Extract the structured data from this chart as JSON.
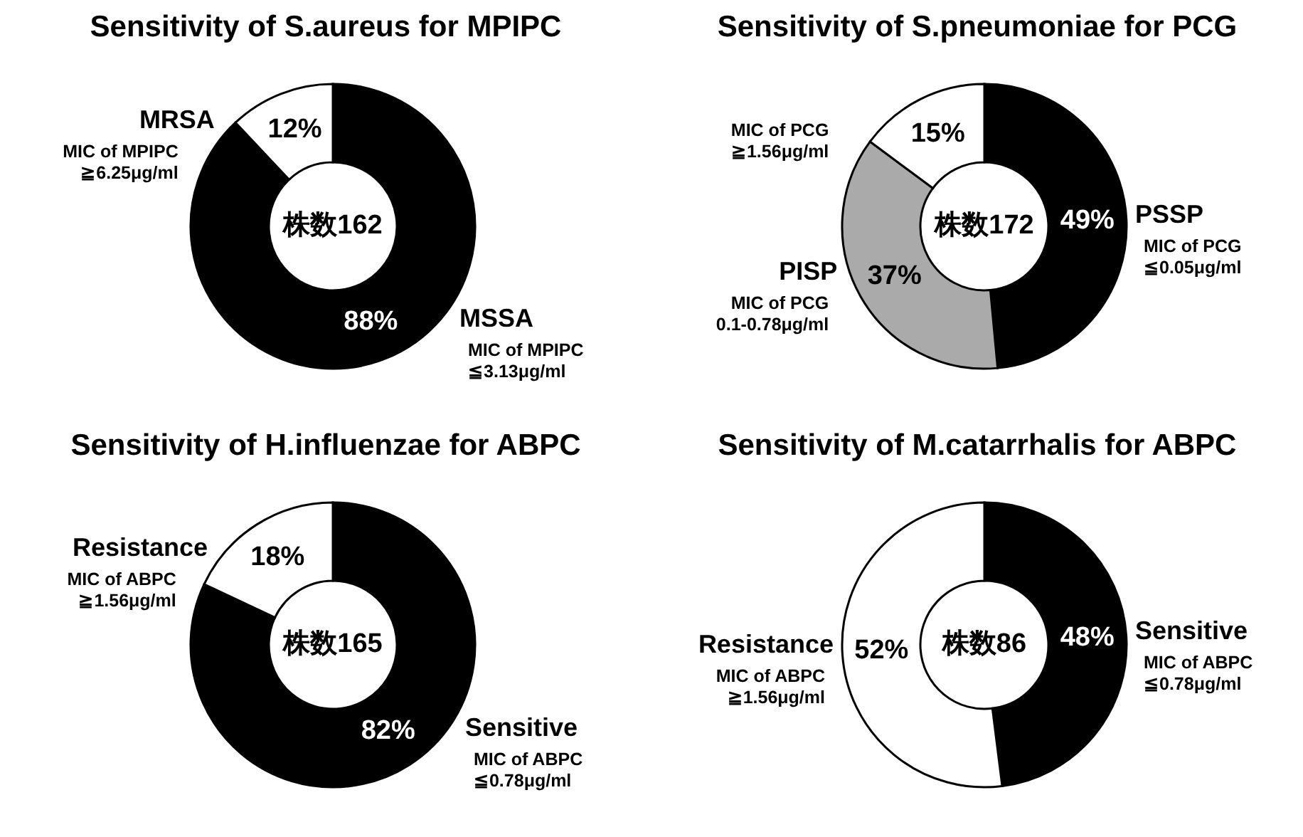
{
  "chart_data": [
    {
      "type": "donut",
      "title": "Sensitivity of S.aureus for MPIPC",
      "categories": [
        "MSSA",
        "MRSA"
      ],
      "values": [
        88,
        12
      ],
      "colors": [
        "#000000",
        "#ffffff"
      ],
      "value_labels": [
        "88%",
        "12%"
      ],
      "annotations": [
        "株数162",
        "MIC of MPIPC\n≦3.13μg/ml",
        "MIC of MPIPC\n≧6.25μg/ml"
      ]
    },
    {
      "type": "donut",
      "title": "Sensitivity of S.pneumoniae for PCG",
      "categories": [
        "PSSP",
        "PISP",
        null
      ],
      "values": [
        49,
        37,
        15
      ],
      "colors": [
        "#000000",
        "#aaaaaa",
        "#ffffff"
      ],
      "value_labels": [
        "49%",
        "37%",
        "15%"
      ],
      "annotations": [
        "株数172",
        "MIC of PCG\n≦0.05μg/ml",
        "MIC of PCG\n0.1-0.78μg/ml",
        "MIC of PCG\n≧1.56μg/ml"
      ]
    },
    {
      "type": "donut",
      "title": "Sensitivity of H.influenzae for ABPC",
      "categories": [
        "Sensitive",
        "Resistance"
      ],
      "values": [
        82,
        18
      ],
      "colors": [
        "#000000",
        "#ffffff"
      ],
      "value_labels": [
        "82%",
        "18%"
      ],
      "annotations": [
        "株数165",
        "MIC of ABPC\n≦0.78μg/ml",
        "MIC of ABPC\n≧1.56μg/ml"
      ]
    },
    {
      "type": "donut",
      "title": "Sensitivity of M.catarrhalis for ABPC",
      "categories": [
        "Sensitive",
        "Resistance"
      ],
      "values": [
        48,
        52
      ],
      "colors": [
        "#000000",
        "#ffffff"
      ],
      "value_labels": [
        "48%",
        "52%"
      ],
      "annotations": [
        "株数86",
        "MIC of ABPC\n≦0.78μg/ml",
        "MIC of ABPC\n≧1.56μg/ml"
      ]
    }
  ]
}
